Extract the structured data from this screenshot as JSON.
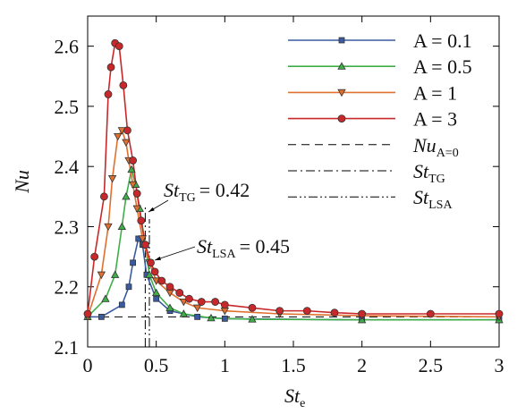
{
  "chart_data": {
    "type": "line",
    "y_label": "Nu",
    "x_label": {
      "text": "St",
      "subscript": "e"
    },
    "xlim": [
      0,
      3
    ],
    "xticks": [
      0,
      0.5,
      1,
      1.5,
      2,
      2.5,
      3
    ],
    "ylim": [
      2.1,
      2.65
    ],
    "yticks": [
      2.1,
      2.2,
      2.3,
      2.4,
      2.5,
      2.6
    ],
    "series": [
      {
        "name": "A = 0.1",
        "color": "#3a5ba0",
        "marker": "square",
        "x": [
          0,
          0.1,
          0.25,
          0.3,
          0.33,
          0.37,
          0.4,
          0.43,
          0.5,
          0.6,
          0.8,
          1,
          2,
          3
        ],
        "values": [
          2.15,
          2.15,
          2.17,
          2.2,
          2.24,
          2.28,
          2.27,
          2.22,
          2.18,
          2.16,
          2.15,
          2.147,
          2.145,
          2.145
        ]
      },
      {
        "name": "A = 0.5",
        "color": "#3fae49",
        "marker": "triangle-up",
        "x": [
          0,
          0.13,
          0.2,
          0.25,
          0.28,
          0.32,
          0.35,
          0.38,
          0.42,
          0.45,
          0.5,
          0.6,
          0.7,
          0.9,
          1.2,
          2,
          3
        ],
        "values": [
          2.15,
          2.18,
          2.22,
          2.3,
          2.35,
          2.395,
          2.37,
          2.33,
          2.27,
          2.22,
          2.19,
          2.165,
          2.155,
          2.148,
          2.146,
          2.145,
          2.145
        ]
      },
      {
        "name": "A = 1",
        "color": "#e07030",
        "marker": "triangle-down",
        "x": [
          0,
          0.1,
          0.15,
          0.18,
          0.22,
          0.25,
          0.28,
          0.3,
          0.33,
          0.36,
          0.4,
          0.45,
          0.5,
          0.6,
          0.7,
          0.8,
          1,
          1.4,
          2,
          3
        ],
        "values": [
          2.15,
          2.22,
          2.3,
          2.38,
          2.45,
          2.46,
          2.44,
          2.41,
          2.37,
          2.33,
          2.28,
          2.24,
          2.21,
          2.19,
          2.175,
          2.165,
          2.16,
          2.155,
          2.152,
          2.15
        ]
      },
      {
        "name": "A = 3",
        "color": "#c8282a",
        "marker": "circle",
        "x": [
          0,
          0.05,
          0.12,
          0.15,
          0.17,
          0.2,
          0.23,
          0.26,
          0.29,
          0.33,
          0.36,
          0.39,
          0.42,
          0.46,
          0.49,
          0.54,
          0.6,
          0.67,
          0.74,
          0.83,
          0.93,
          1,
          1.2,
          1.4,
          1.6,
          1.8,
          2,
          2.5,
          3
        ],
        "values": [
          2.155,
          2.25,
          2.35,
          2.52,
          2.565,
          2.605,
          2.6,
          2.535,
          2.46,
          2.41,
          2.355,
          2.31,
          2.27,
          2.24,
          2.225,
          2.21,
          2.2,
          2.19,
          2.18,
          2.175,
          2.175,
          2.17,
          2.165,
          2.16,
          2.16,
          2.157,
          2.155,
          2.155,
          2.155
        ]
      }
    ],
    "reference_lines": [
      {
        "name": "Nu",
        "subscript": "A=0",
        "orientation": "horizontal",
        "value": 2.15,
        "style": "dashed"
      },
      {
        "name": "St",
        "subscript": "TG",
        "orientation": "vertical",
        "value": 0.42,
        "style": "dashdot",
        "annotation": "= 0.42"
      },
      {
        "name": "St",
        "subscript": "LSA",
        "orientation": "vertical",
        "value": 0.45,
        "style": "dashdotdot",
        "annotation": "= 0.45"
      }
    ],
    "legend": "upper right"
  }
}
